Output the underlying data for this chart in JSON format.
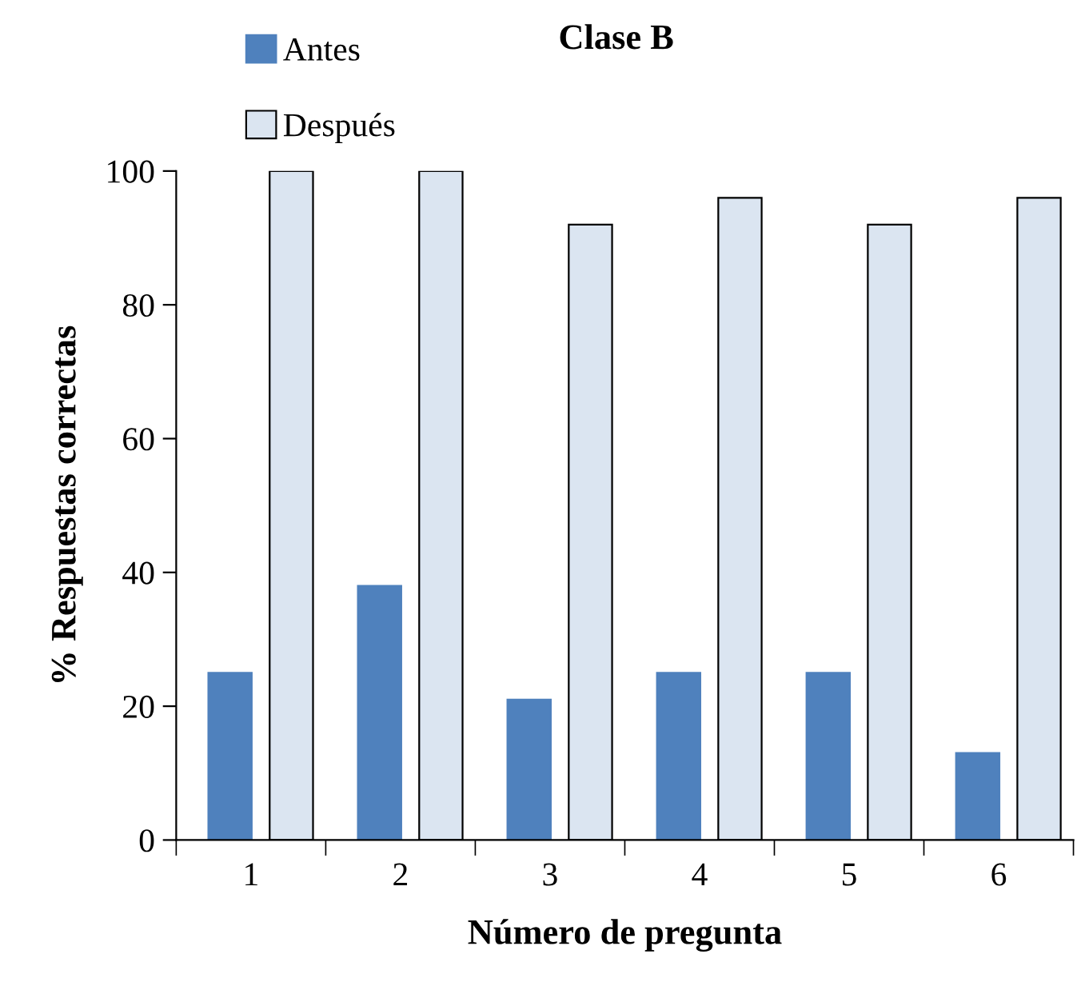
{
  "chart_data": {
    "type": "bar",
    "title": "Clase B",
    "xlabel": "Número de pregunta",
    "ylabel": "% Respuestas correctas",
    "categories": [
      "1",
      "2",
      "3",
      "4",
      "5",
      "6"
    ],
    "series": [
      {
        "name": "Antes",
        "color": "#4f81bd",
        "values": [
          25,
          38,
          21,
          25,
          25,
          13
        ]
      },
      {
        "name": "Después",
        "color": "#dbe5f1",
        "values": [
          100,
          100,
          92,
          96,
          92,
          96
        ]
      }
    ],
    "ylim": [
      0,
      100
    ],
    "yticks": [
      0,
      20,
      40,
      60,
      80,
      100
    ],
    "legend": "top left",
    "grid": false
  }
}
